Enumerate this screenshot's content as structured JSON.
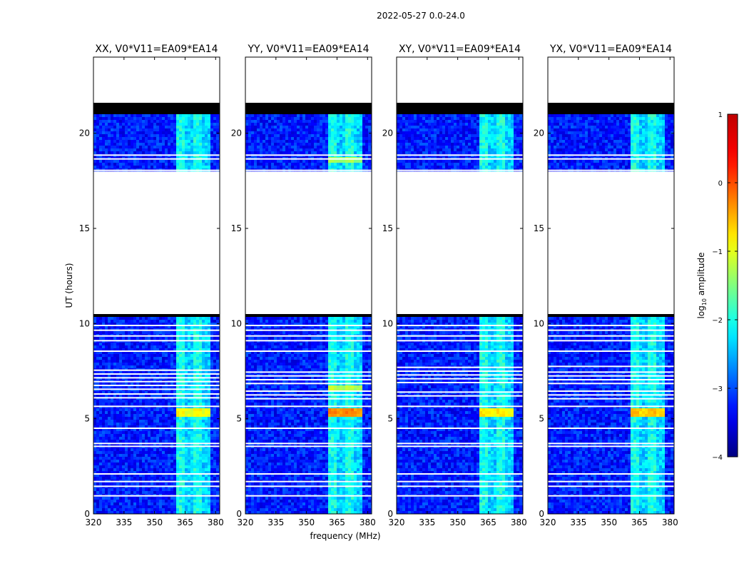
{
  "figure": {
    "suptitle": "2022-05-27 0.0-24.0",
    "xlabel": "frequency (MHz)",
    "ylabel": "UT (hours)",
    "colorbar_label": "log",
    "colorbar_label_sub": "10",
    "colorbar_label_rest": " amplitude"
  },
  "chart_data": {
    "type": "heatmap",
    "xlim": [
      320,
      382
    ],
    "ylim": [
      0,
      24
    ],
    "x_ticks": [
      320,
      335,
      350,
      365,
      380
    ],
    "y_ticks": [
      0,
      5,
      10,
      15,
      20
    ],
    "color_range": [
      -4,
      1
    ],
    "colorbar_ticks": [
      1,
      0,
      -1,
      -2,
      -3,
      -4
    ],
    "colorbar_tick_labels": [
      "1",
      "0",
      "−1",
      "−2",
      "−3",
      "−4"
    ],
    "colormap": [
      "#00007f",
      "#0000ff",
      "#007fff",
      "#00ffff",
      "#7fff7f",
      "#ffff00",
      "#ff7f00",
      "#ff0000",
      "#7f0000"
    ],
    "missing_blocks_hours": [
      [
        21.6,
        24.0
      ],
      [
        10.45,
        18.0
      ]
    ],
    "flagged_black_bands_hours": [
      [
        20.95,
        21.6
      ],
      [
        10.3,
        10.45
      ],
      [
        3.25,
        3.35
      ]
    ],
    "rfi_band_mhz": [
      360,
      378
    ],
    "panels": [
      {
        "title": "XX, V0*V11=EA09*EA14",
        "panel_white_lines_hours": [
          7.55,
          7.35,
          7.15,
          6.95,
          6.75,
          6.55,
          6.3,
          6.1
        ],
        "bright_hours": [
          [
            5.1,
            5.5,
            -1.0
          ]
        ]
      },
      {
        "title": "YY, V0*V11=EA09*EA14",
        "panel_white_lines_hours": [
          7.45,
          7.25,
          7.05,
          6.85,
          6.45,
          6.25,
          6.05
        ],
        "bright_hours": [
          [
            5.1,
            5.5,
            -0.4
          ],
          [
            18.4,
            18.8,
            -1.4
          ],
          [
            6.5,
            6.8,
            -1.3
          ]
        ]
      },
      {
        "title": "XY, V0*V11=EA09*EA14",
        "panel_white_lines_hours": [
          7.7,
          7.5,
          7.3,
          7.1,
          6.9,
          6.4,
          6.2
        ],
        "bright_hours": [
          [
            5.1,
            5.5,
            -0.9
          ]
        ]
      },
      {
        "title": "YX, V0*V11=EA09*EA14",
        "panel_white_lines_hours": [
          7.75,
          7.45,
          7.25,
          7.05,
          6.85,
          6.45,
          6.25,
          6.05
        ],
        "bright_hours": [
          [
            5.1,
            5.5,
            -0.7
          ]
        ]
      }
    ]
  }
}
